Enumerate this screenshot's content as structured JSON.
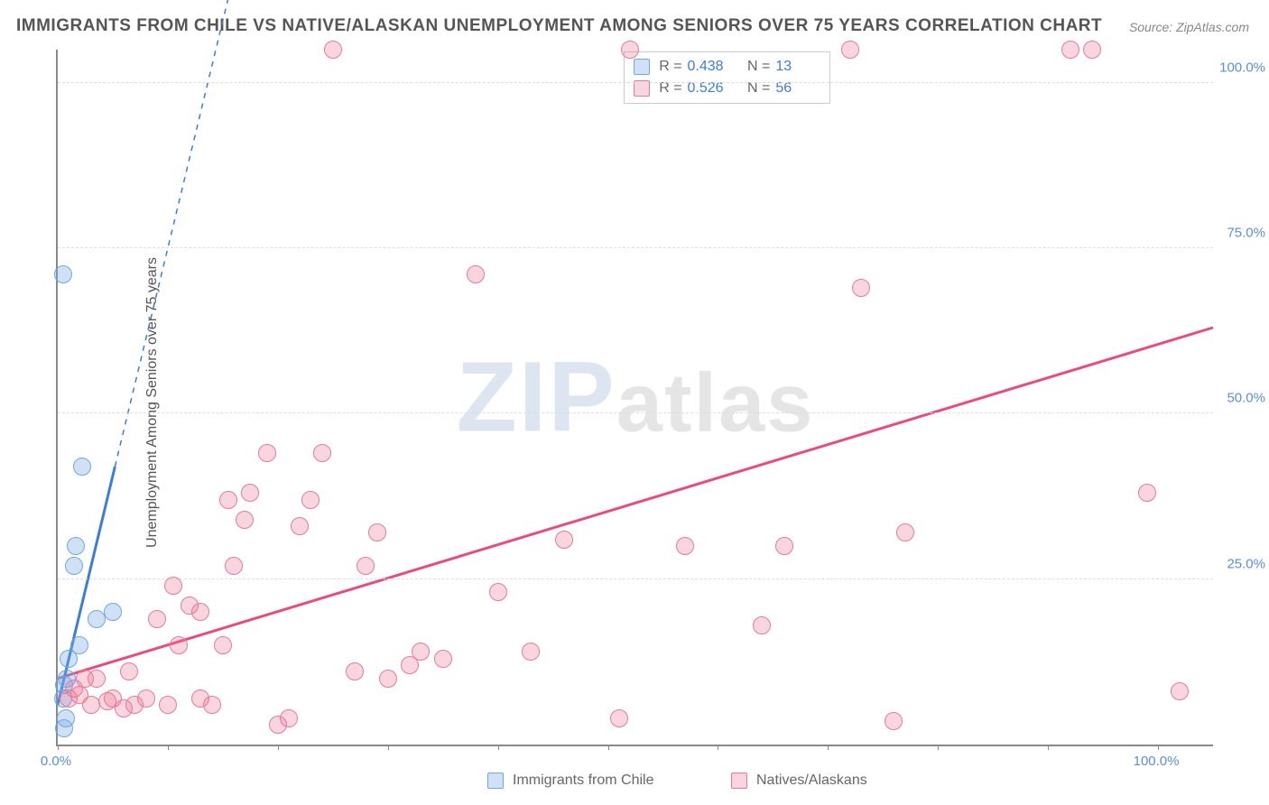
{
  "title": "IMMIGRANTS FROM CHILE VS NATIVE/ALASKAN UNEMPLOYMENT AMONG SENIORS OVER 75 YEARS CORRELATION CHART",
  "source": "Source: ZipAtlas.com",
  "y_axis_label": "Unemployment Among Seniors over 75 years",
  "watermark_zip": "ZIP",
  "watermark_rest": "atlas",
  "chart": {
    "type": "scatter",
    "xlim": [
      0,
      105
    ],
    "ylim": [
      0,
      105
    ],
    "y_ticks": [
      25,
      50,
      75,
      100
    ],
    "y_tick_labels": [
      "25.0%",
      "50.0%",
      "75.0%",
      "100.0%"
    ],
    "x_ticks": [
      0,
      10,
      20,
      30,
      40,
      50,
      60,
      70,
      80,
      90,
      100
    ],
    "x_tick_labels_visible": {
      "0": "0.0%",
      "100": "100.0%"
    },
    "grid_color": "#dddddd",
    "background_color": "#ffffff",
    "marker_radius": 10,
    "series": [
      {
        "id": "chile",
        "label": "Immigrants from Chile",
        "fill": "rgba(120,170,230,0.35)",
        "stroke": "#6fa8e8",
        "R": "0.438",
        "N": "13",
        "trend": {
          "x1": 0,
          "y1": 6,
          "x2": 5.2,
          "y2": 42,
          "solid_to_x": 5.2,
          "dash_to_x": 18,
          "dash_to_y": 130,
          "color": "#3b7dd8",
          "width": 3
        },
        "points": [
          {
            "x": 0.6,
            "y": 2.5
          },
          {
            "x": 0.7,
            "y": 4
          },
          {
            "x": 0.5,
            "y": 7
          },
          {
            "x": 0.6,
            "y": 9
          },
          {
            "x": 0.8,
            "y": 10
          },
          {
            "x": 1.0,
            "y": 13
          },
          {
            "x": 2.0,
            "y": 15
          },
          {
            "x": 3.5,
            "y": 19
          },
          {
            "x": 5.0,
            "y": 20
          },
          {
            "x": 1.5,
            "y": 27
          },
          {
            "x": 1.6,
            "y": 30
          },
          {
            "x": 2.2,
            "y": 42
          },
          {
            "x": 0.5,
            "y": 71
          }
        ]
      },
      {
        "id": "natives",
        "label": "Natives/Alaskans",
        "fill": "rgba(235,120,150,0.30)",
        "stroke": "#e77a9a",
        "R": "0.526",
        "N": "56",
        "trend": {
          "x1": 0,
          "y1": 10,
          "x2": 105,
          "y2": 63,
          "color": "#e94b7b",
          "width": 3
        },
        "points": [
          {
            "x": 1,
            "y": 7
          },
          {
            "x": 1.5,
            "y": 8.5
          },
          {
            "x": 2,
            "y": 7.5
          },
          {
            "x": 2.5,
            "y": 10
          },
          {
            "x": 3,
            "y": 6
          },
          {
            "x": 3.5,
            "y": 10
          },
          {
            "x": 4.5,
            "y": 6.5
          },
          {
            "x": 5,
            "y": 7
          },
          {
            "x": 6,
            "y": 5.5
          },
          {
            "x": 6.5,
            "y": 11
          },
          {
            "x": 7,
            "y": 6
          },
          {
            "x": 8,
            "y": 7
          },
          {
            "x": 9,
            "y": 19
          },
          {
            "x": 10,
            "y": 6
          },
          {
            "x": 10.5,
            "y": 24
          },
          {
            "x": 11,
            "y": 15
          },
          {
            "x": 12,
            "y": 21
          },
          {
            "x": 13,
            "y": 7
          },
          {
            "x": 13,
            "y": 20
          },
          {
            "x": 14,
            "y": 6
          },
          {
            "x": 15,
            "y": 15
          },
          {
            "x": 15.5,
            "y": 37
          },
          {
            "x": 16,
            "y": 27
          },
          {
            "x": 17,
            "y": 34
          },
          {
            "x": 17.5,
            "y": 38
          },
          {
            "x": 19,
            "y": 44
          },
          {
            "x": 20,
            "y": 3
          },
          {
            "x": 21,
            "y": 4
          },
          {
            "x": 22,
            "y": 33
          },
          {
            "x": 23,
            "y": 37
          },
          {
            "x": 24,
            "y": 44
          },
          {
            "x": 25,
            "y": 105
          },
          {
            "x": 27,
            "y": 11
          },
          {
            "x": 28,
            "y": 27
          },
          {
            "x": 29,
            "y": 32
          },
          {
            "x": 30,
            "y": 10
          },
          {
            "x": 32,
            "y": 12
          },
          {
            "x": 33,
            "y": 14
          },
          {
            "x": 35,
            "y": 13
          },
          {
            "x": 38,
            "y": 71
          },
          {
            "x": 40,
            "y": 23
          },
          {
            "x": 43,
            "y": 14
          },
          {
            "x": 46,
            "y": 31
          },
          {
            "x": 51,
            "y": 4
          },
          {
            "x": 52,
            "y": 105
          },
          {
            "x": 57,
            "y": 30
          },
          {
            "x": 64,
            "y": 18
          },
          {
            "x": 66,
            "y": 30
          },
          {
            "x": 72,
            "y": 105
          },
          {
            "x": 73,
            "y": 69
          },
          {
            "x": 76,
            "y": 3.5
          },
          {
            "x": 77,
            "y": 32
          },
          {
            "x": 92,
            "y": 105
          },
          {
            "x": 94,
            "y": 105
          },
          {
            "x": 99,
            "y": 38
          },
          {
            "x": 102,
            "y": 8
          }
        ]
      }
    ]
  },
  "legend_top_label_R": "R =",
  "legend_top_label_N": "N ="
}
